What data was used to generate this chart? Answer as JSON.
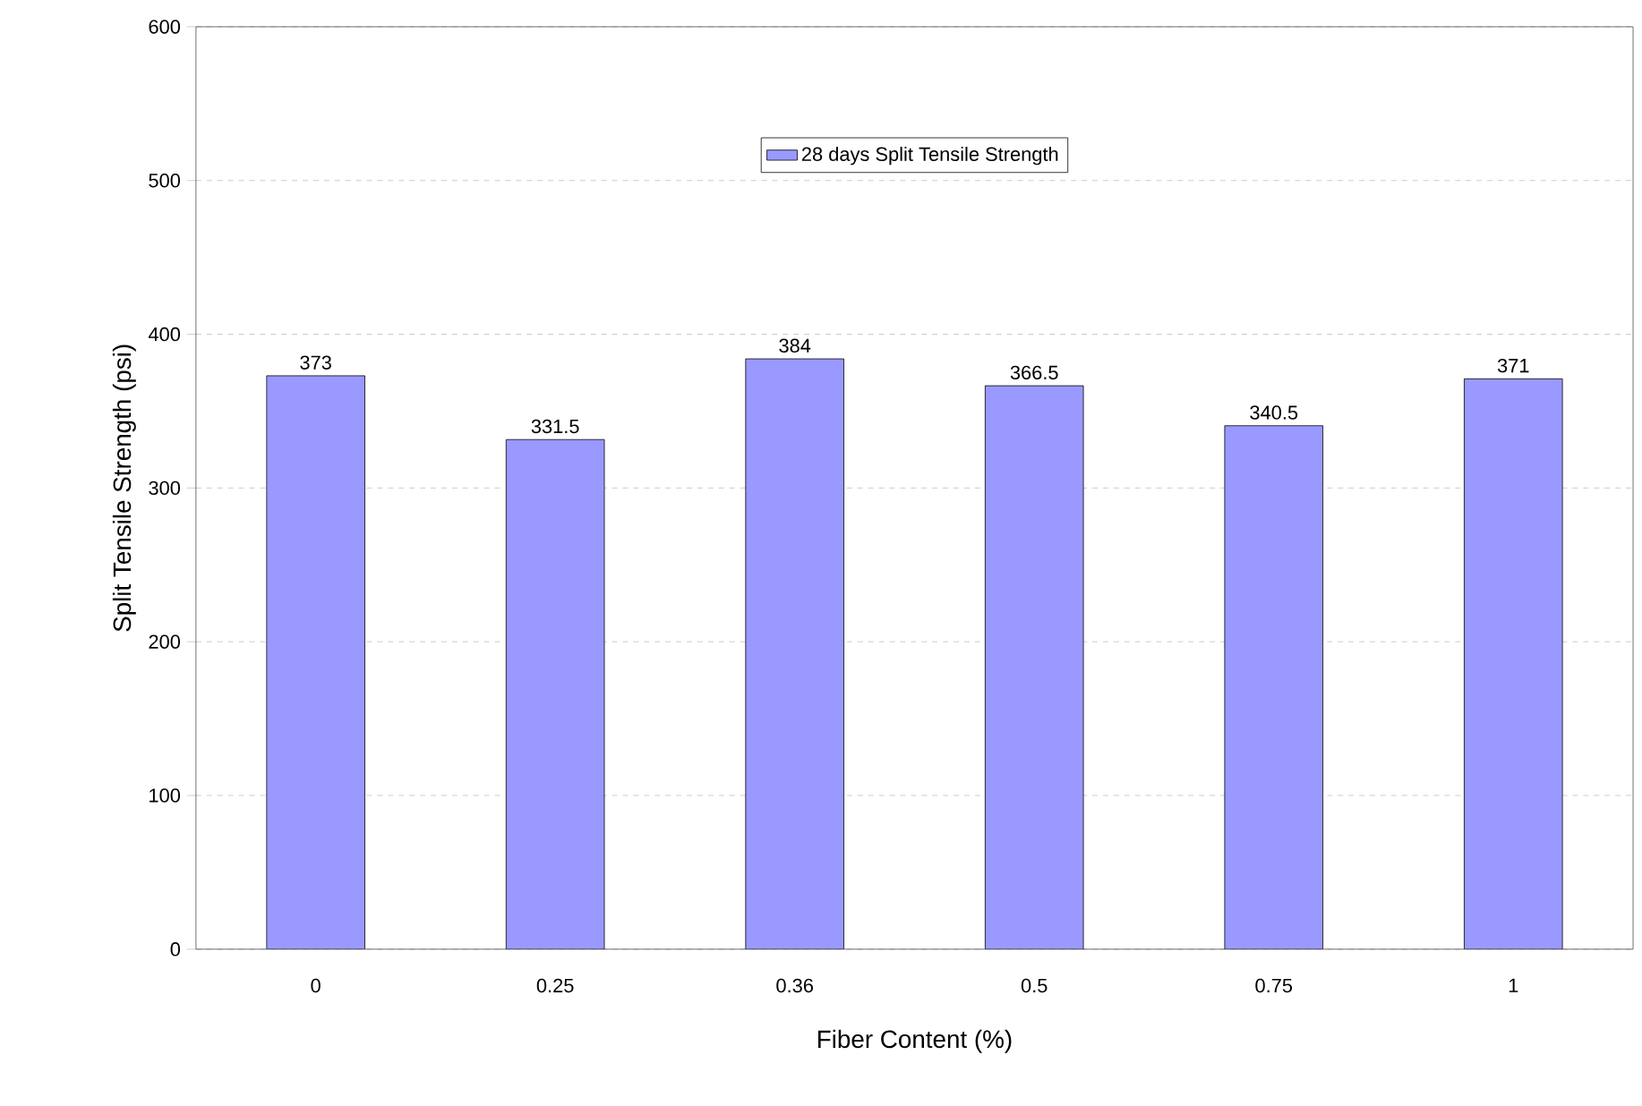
{
  "chart_data": {
    "type": "bar",
    "xlabel": "Fiber Content (%)",
    "ylabel": "Split Tensile Strength (psi)",
    "categories": [
      "0",
      "0.25",
      "0.36",
      "0.5",
      "0.75",
      "1"
    ],
    "series": [
      {
        "name": "28 days Split Tensile Strength",
        "color": "#9999ff",
        "values": [
          373,
          331.5,
          384,
          366.5,
          340.5,
          371
        ]
      }
    ],
    "ylim": [
      0,
      600
    ],
    "yticks": [
      0,
      100,
      200,
      300,
      400,
      500,
      600
    ],
    "grid": "y",
    "legend": "top",
    "data_labels": true
  }
}
